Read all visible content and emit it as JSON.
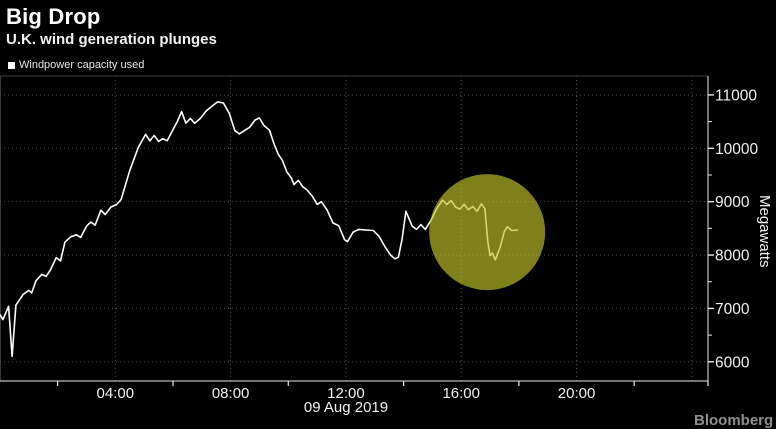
{
  "header": {
    "title": "Big Drop",
    "subtitle": "U.K. wind generation plunges"
  },
  "legend": {
    "marker": "square",
    "label": "Windpower capacity used",
    "marker_color": "#ffffff"
  },
  "footer": {
    "brand": "Bloomberg",
    "mark": "■"
  },
  "colors": {
    "background": "#000000",
    "text": "#f2f2f2",
    "line": "#ffffff",
    "grid": "#4e4e4e",
    "axis": "#e8e8e8",
    "highlight": "#c1c12a"
  },
  "chart_data": {
    "type": "line",
    "title": "Big Drop",
    "subtitle": "U.K. wind generation plunges",
    "ylabel": "Megawatts",
    "x_axis_date": "09 Aug 2019",
    "x_unit": "time of day (hours)",
    "xlim": [
      0,
      24.56
    ],
    "ylim": [
      5640,
      11355
    ],
    "grid": "dotted",
    "legend_position": "top-left",
    "x_tick_hours": [
      4,
      8,
      12,
      16,
      20
    ],
    "x_tick_labels": [
      "04:00",
      "08:00",
      "12:00",
      "16:00",
      "20:00"
    ],
    "x_minor_tick_hours": [
      2,
      6,
      10,
      14,
      18,
      22
    ],
    "x_grid_hours": [
      4,
      8,
      12,
      16,
      20,
      24
    ],
    "y_ticks": [
      6000,
      7000,
      8000,
      9000,
      10000,
      11000
    ],
    "y_minor_ticks": [
      6500,
      7500,
      8500,
      9500,
      10500
    ],
    "annotation_circle": {
      "center_hour": 16.9,
      "center_value": 8430,
      "radius_px": 58,
      "color": "#c1c12a",
      "opacity": 0.66
    },
    "series": [
      {
        "name": "Windpower capacity used",
        "color": "#ffffff",
        "points": [
          [
            0.0,
            6880
          ],
          [
            0.1,
            6790
          ],
          [
            0.3,
            7040
          ],
          [
            0.42,
            6100
          ],
          [
            0.55,
            7060
          ],
          [
            0.8,
            7260
          ],
          [
            1.0,
            7340
          ],
          [
            1.1,
            7290
          ],
          [
            1.25,
            7520
          ],
          [
            1.45,
            7640
          ],
          [
            1.6,
            7600
          ],
          [
            1.75,
            7720
          ],
          [
            1.95,
            7950
          ],
          [
            2.1,
            7890
          ],
          [
            2.25,
            8240
          ],
          [
            2.45,
            8340
          ],
          [
            2.65,
            8380
          ],
          [
            2.8,
            8330
          ],
          [
            3.0,
            8540
          ],
          [
            3.15,
            8620
          ],
          [
            3.3,
            8560
          ],
          [
            3.5,
            8840
          ],
          [
            3.65,
            8760
          ],
          [
            3.85,
            8900
          ],
          [
            4.05,
            8950
          ],
          [
            4.2,
            9040
          ],
          [
            4.5,
            9580
          ],
          [
            4.8,
            10020
          ],
          [
            5.05,
            10260
          ],
          [
            5.2,
            10140
          ],
          [
            5.35,
            10240
          ],
          [
            5.5,
            10130
          ],
          [
            5.65,
            10180
          ],
          [
            5.8,
            10140
          ],
          [
            6.0,
            10350
          ],
          [
            6.15,
            10500
          ],
          [
            6.3,
            10690
          ],
          [
            6.45,
            10470
          ],
          [
            6.6,
            10560
          ],
          [
            6.75,
            10470
          ],
          [
            6.95,
            10560
          ],
          [
            7.15,
            10700
          ],
          [
            7.4,
            10810
          ],
          [
            7.55,
            10870
          ],
          [
            7.75,
            10850
          ],
          [
            7.95,
            10660
          ],
          [
            8.15,
            10330
          ],
          [
            8.3,
            10270
          ],
          [
            8.5,
            10340
          ],
          [
            8.65,
            10390
          ],
          [
            8.85,
            10530
          ],
          [
            9.0,
            10570
          ],
          [
            9.15,
            10430
          ],
          [
            9.35,
            10340
          ],
          [
            9.5,
            10090
          ],
          [
            9.65,
            9890
          ],
          [
            9.8,
            9770
          ],
          [
            9.95,
            9560
          ],
          [
            10.1,
            9450
          ],
          [
            10.2,
            9320
          ],
          [
            10.35,
            9400
          ],
          [
            10.5,
            9280
          ],
          [
            10.65,
            9220
          ],
          [
            10.85,
            9090
          ],
          [
            11.0,
            8950
          ],
          [
            11.15,
            9000
          ],
          [
            11.35,
            8840
          ],
          [
            11.55,
            8600
          ],
          [
            11.75,
            8550
          ],
          [
            11.95,
            8290
          ],
          [
            12.05,
            8250
          ],
          [
            12.25,
            8430
          ],
          [
            12.45,
            8480
          ],
          [
            12.7,
            8470
          ],
          [
            12.95,
            8460
          ],
          [
            13.15,
            8350
          ],
          [
            13.35,
            8160
          ],
          [
            13.55,
            8000
          ],
          [
            13.7,
            7930
          ],
          [
            13.82,
            7960
          ],
          [
            13.95,
            8300
          ],
          [
            14.08,
            8820
          ],
          [
            14.3,
            8540
          ],
          [
            14.45,
            8480
          ],
          [
            14.6,
            8570
          ],
          [
            14.75,
            8480
          ],
          [
            14.95,
            8650
          ],
          [
            15.15,
            8870
          ],
          [
            15.35,
            9030
          ],
          [
            15.5,
            8950
          ],
          [
            15.65,
            9020
          ],
          [
            15.8,
            8900
          ],
          [
            15.95,
            8860
          ],
          [
            16.1,
            8950
          ],
          [
            16.25,
            8850
          ],
          [
            16.4,
            8910
          ],
          [
            16.55,
            8820
          ],
          [
            16.7,
            8960
          ],
          [
            16.82,
            8870
          ],
          [
            16.92,
            8250
          ],
          [
            17.0,
            7990
          ],
          [
            17.08,
            8040
          ],
          [
            17.18,
            7910
          ],
          [
            17.35,
            8150
          ],
          [
            17.5,
            8450
          ],
          [
            17.6,
            8530
          ],
          [
            17.75,
            8460
          ],
          [
            17.95,
            8470
          ]
        ]
      }
    ]
  }
}
